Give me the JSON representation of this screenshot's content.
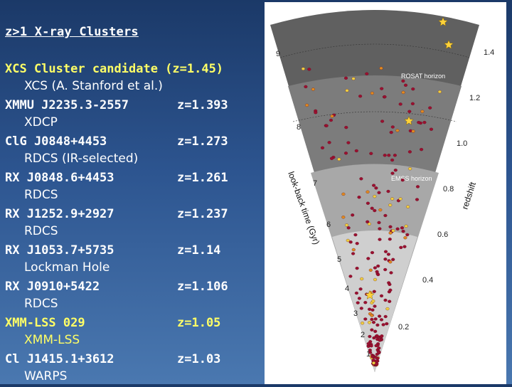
{
  "title": "z>1 X-ray Clusters",
  "clusters": [
    {
      "name": "XCS Cluster candidate (z=1.45)",
      "z": "",
      "source": "XCS (A. Stanford et al.)",
      "highlight": "yellow"
    },
    {
      "name": "XMMU J2235.3-2557",
      "z": "z=1.393",
      "source": "XDCP",
      "highlight": "white"
    },
    {
      "name": "ClG J0848+4453",
      "z": "z=1.273",
      "source": "RDCS (IR-selected)",
      "highlight": "white"
    },
    {
      "name": "RX J0848.6+4453",
      "z": "z=1.261",
      "source": "RDCS",
      "highlight": "white"
    },
    {
      "name": "RX J1252.9+2927",
      "z": "z=1.237",
      "source": "RDCS",
      "highlight": "white"
    },
    {
      "name": "RX J1053.7+5735",
      "z": "z=1.14",
      "source": "Lockman Hole",
      "highlight": "white"
    },
    {
      "name": "RX J0910+5422",
      "z": "z=1.106",
      "source": "RDCS",
      "highlight": "white"
    },
    {
      "name": "XMM-LSS 029",
      "z": "z=1.05",
      "source": "XMM-LSS",
      "highlight": "yellow"
    },
    {
      "name": "Cl J1415.1+3612",
      "z": "z=1.03",
      "source": "WARPS",
      "highlight": "white"
    }
  ],
  "cone": {
    "lookback_axis_label": "look-back time (Gyr)",
    "redshift_axis_label": "redshift",
    "lookback_ticks": [
      "1",
      "2",
      "3",
      "4",
      "5",
      "6",
      "7",
      "8",
      "9"
    ],
    "redshift_ticks": [
      "0.2",
      "0.4",
      "0.6",
      "0.8",
      "1.0",
      "1.2",
      "1.4"
    ],
    "rosat_horizon_label": "ROSAT horizon",
    "emss_horizon_label": "EMSS horizon",
    "colors": {
      "outer_band": "#606060",
      "mid_band": "#7c7c7c",
      "inner_band": "#a8a8a8",
      "core_band": "#cfcfcf",
      "cluster_dot": "#9a1030",
      "cluster_dot_orange": "#e08a20",
      "cluster_dot_yellow": "#f0d040",
      "star": "#ffd23a"
    }
  }
}
